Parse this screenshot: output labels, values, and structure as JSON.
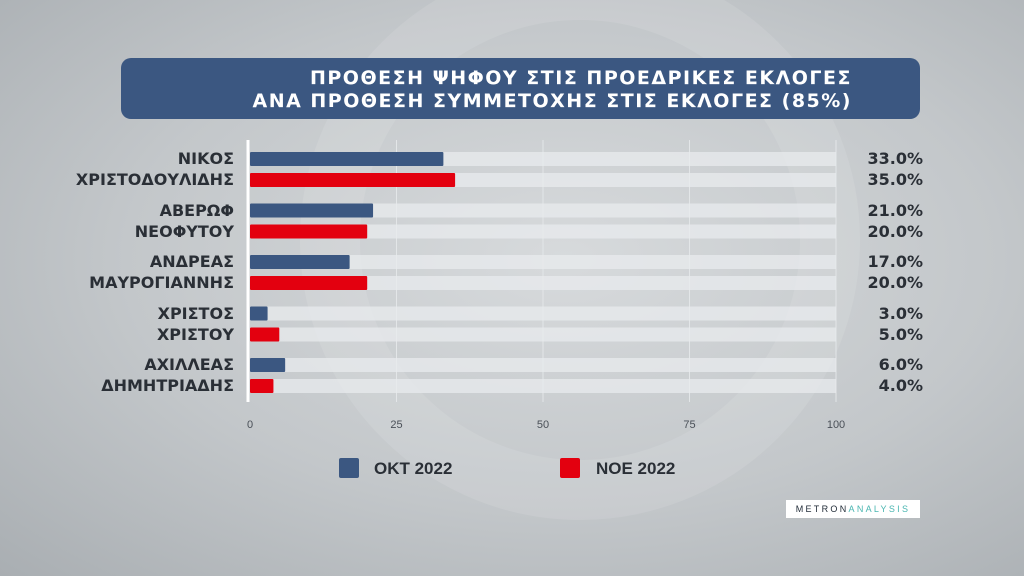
{
  "title": {
    "line1": "ΠΡΟΘΕΣΗ ΨΗΦΟΥ ΣΤΙΣ ΠΡΟΕΔΡΙΚΕΣ ΕΚΛΟΓΕΣ",
    "line2": "ΑΝΑ ΠΡΟΘΕΣΗ ΣΥΜΜΕΤΟΧΗΣ ΣΤΙΣ ΕΚΛΟΓΕΣ (85%)"
  },
  "chart_data": {
    "type": "bar",
    "orientation": "horizontal",
    "categories": [
      [
        "ΝΙΚΟΣ",
        "ΧΡΙΣΤΟΔΟΥΛΙΔΗΣ"
      ],
      [
        "ΑΒΕΡΩΦ",
        "ΝΕΟΦΥΤΟΥ"
      ],
      [
        "ΑΝΔΡΕΑΣ",
        "ΜΑΥΡΟΓΙΑΝΝΗΣ"
      ],
      [
        "ΧΡΙΣΤΟΣ",
        "ΧΡΙΣΤΟΥ"
      ],
      [
        "ΑΧΙΛΛΕΑΣ",
        "ΔΗΜΗΤΡΙΑΔΗΣ"
      ]
    ],
    "series": [
      {
        "name": "ΟΚΤ 2022",
        "color": "#3b5781",
        "values": [
          33.0,
          21.0,
          17.0,
          3.0,
          6.0
        ],
        "labels": [
          "33.0%",
          "21.0%",
          "17.0%",
          "3.0%",
          "6.0%"
        ]
      },
      {
        "name": "ΝΟΕ 2022",
        "color": "#e3000f",
        "values": [
          35.0,
          20.0,
          20.0,
          5.0,
          4.0
        ],
        "labels": [
          "35.0%",
          "20.0%",
          "20.0%",
          "5.0%",
          "4.0%"
        ]
      }
    ],
    "xlim": [
      0,
      100
    ],
    "xticks": [
      "0",
      "25",
      "50",
      "75",
      "100"
    ],
    "grid": true,
    "legend_position": "bottom"
  },
  "logo": {
    "part1": "METRON",
    "part2": "ANALYSIS"
  }
}
